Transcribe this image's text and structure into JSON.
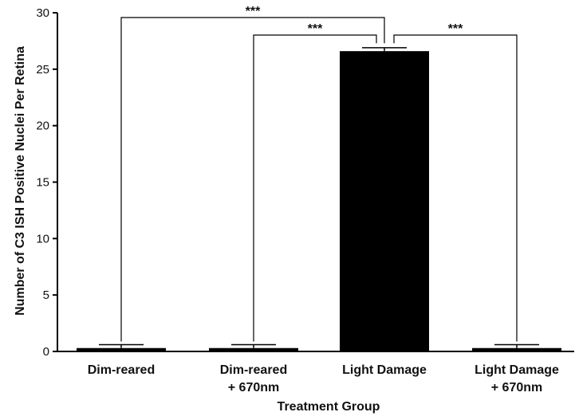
{
  "chart_data": {
    "type": "bar",
    "categories": [
      [
        "Dim-reared"
      ],
      [
        "Dim-reared",
        "+ 670nm"
      ],
      [
        "Light Damage"
      ],
      [
        "Light Damage",
        "+ 670nm"
      ]
    ],
    "values": [
      0.3,
      0.3,
      26.6,
      0.3
    ],
    "errors": [
      0.3,
      0.3,
      0.3,
      0.3
    ],
    "xlabel": "Treatment Group",
    "ylabel": "Number of C3 ISH Positive Nuclei Per Retina",
    "ylim": [
      0,
      30
    ],
    "yticks": [
      0,
      5,
      10,
      15,
      20,
      25,
      30
    ],
    "bar_color": "#000000",
    "significance": [
      {
        "from": 0,
        "to": 2,
        "label": "***"
      },
      {
        "from": 1,
        "to": 2,
        "label": "***"
      },
      {
        "from": 2,
        "to": 3,
        "label": "***"
      }
    ]
  }
}
